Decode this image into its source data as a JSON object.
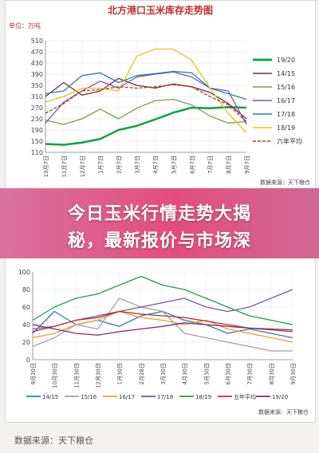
{
  "banner": {
    "line1": "今日玉米行情走势大揭",
    "line2": "秘，最新报价与市场深"
  },
  "footer": {
    "source": "数据来源：天下粮仓"
  },
  "chart_data": [
    {
      "type": "line",
      "title": "北方港口玉米库存走势图",
      "unit_label": "单位：万吨",
      "source": "数据来源：天下粮仓",
      "ylim": [
        110,
        510
      ],
      "yticks": [
        110,
        150,
        190,
        230,
        270,
        310,
        350,
        390,
        430,
        470,
        510
      ],
      "x_tick_labels": [
        "10月7日",
        "11月7日",
        "12月7日",
        "1月7日",
        "2月7日",
        "3月7日",
        "4月7日",
        "5月7日",
        "6月7日",
        "7月7日",
        "8月7日",
        "9月7日"
      ],
      "grid": true,
      "legend_position": "right",
      "series": [
        {
          "name": "19/20",
          "color": "#1aa04a",
          "values": [
            140,
            137,
            145,
            158,
            190,
            205,
            228,
            252,
            270,
            268,
            272,
            270
          ]
        },
        {
          "name": "14/15",
          "color": "#7a2a34",
          "values": [
            310,
            360,
            315,
            330,
            375,
            350,
            340,
            355,
            345,
            325,
            285,
            230
          ]
        },
        {
          "name": "15/16",
          "color": "#7aa04a",
          "values": [
            225,
            210,
            230,
            265,
            230,
            268,
            295,
            300,
            280,
            240,
            215,
            220
          ]
        },
        {
          "name": "16/17",
          "color": "#7a55a8",
          "values": [
            215,
            290,
            330,
            365,
            340,
            380,
            390,
            398,
            380,
            340,
            330,
            210
          ]
        },
        {
          "name": "17/18",
          "color": "#2a7fa8",
          "values": [
            320,
            330,
            385,
            395,
            360,
            385,
            392,
            400,
            395,
            340,
            320,
            300
          ]
        },
        {
          "name": "18/19",
          "color": "#e8c21a",
          "values": [
            290,
            310,
            340,
            340,
            330,
            455,
            480,
            480,
            440,
            340,
            250,
            180
          ]
        },
        {
          "name": "六年平均",
          "color": "#c0302a",
          "dashed": true,
          "values": [
            250,
            285,
            330,
            335,
            345,
            340,
            345,
            352,
            345,
            310,
            280,
            220
          ]
        }
      ]
    },
    {
      "type": "line",
      "source": "数据来源：天下粮仓",
      "ylim": [
        0,
        100
      ],
      "yticks": [
        0,
        20,
        40,
        60,
        80,
        100
      ],
      "x_tick_labels": [
        "9月30日",
        "10月30日",
        "11月30日",
        "12月30日",
        "1月30日",
        "2月28日",
        "3月30日",
        "4月30日",
        "5月30日",
        "6月30日",
        "7月30日",
        "8月30日",
        "9月30日"
      ],
      "grid": true,
      "legend_position": "bottom",
      "series": [
        {
          "name": "14/15",
          "color": "#2a7fa8",
          "values": [
            30,
            55,
            40,
            45,
            38,
            50,
            55,
            45,
            40,
            30,
            35,
            30,
            25
          ]
        },
        {
          "name": "15/16",
          "color": "#a0a0a0",
          "values": [
            15,
            25,
            40,
            35,
            70,
            60,
            55,
            30,
            25,
            20,
            15,
            10,
            10
          ]
        },
        {
          "name": "16/17",
          "color": "#e8a030",
          "values": [
            25,
            30,
            40,
            45,
            55,
            48,
            45,
            40,
            45,
            35,
            30,
            25,
            20
          ]
        },
        {
          "name": "17/18",
          "color": "#7a55a8",
          "values": [
            35,
            38,
            45,
            50,
            55,
            60,
            65,
            70,
            60,
            55,
            60,
            70,
            80
          ]
        },
        {
          "name": "18/19",
          "color": "#1aa04a",
          "values": [
            45,
            60,
            70,
            75,
            85,
            95,
            85,
            80,
            70,
            60,
            50,
            45,
            40
          ]
        },
        {
          "name": "五年平均",
          "color": "#c0302a",
          "values": [
            32,
            38,
            45,
            48,
            55,
            52,
            50,
            48,
            44,
            40,
            36,
            34,
            32
          ]
        },
        {
          "name": "19/20",
          "color": "#8a2a6a",
          "values": [
            40,
            35,
            30,
            28,
            32,
            35,
            38,
            42,
            40,
            38,
            36,
            35,
            34
          ]
        }
      ]
    }
  ]
}
